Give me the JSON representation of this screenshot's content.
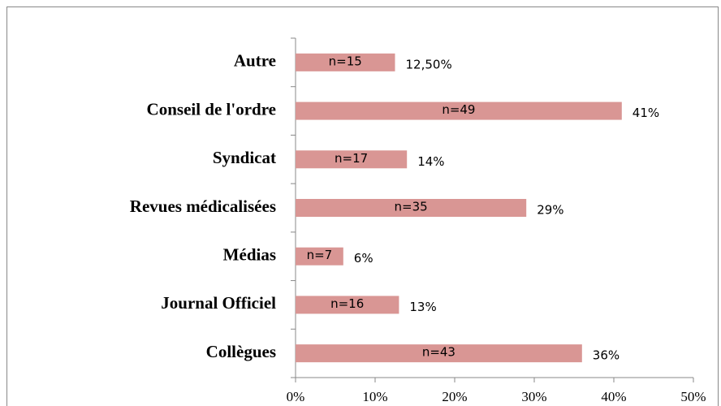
{
  "chart_data": {
    "type": "hbar",
    "categories": [
      "Autre",
      "Conseil de l'ordre",
      "Syndicat",
      "Revues médicalisées",
      "Médias",
      "Journal Officiel",
      "Collègues"
    ],
    "values": [
      12.5,
      41,
      14,
      29,
      6,
      13,
      36
    ],
    "value_labels": [
      "12,50%",
      "41%",
      "14%",
      "29%",
      "6%",
      "13%",
      "36%"
    ],
    "bar_labels": [
      "n=15",
      "n=49",
      "n=17",
      "n=35",
      "n=7",
      "n=16",
      "n=43"
    ],
    "color": "#d99694",
    "xlim": [
      0,
      50
    ],
    "xticks": [
      {
        "value": 0,
        "label": "0%"
      },
      {
        "value": 10,
        "label": "10%"
      },
      {
        "value": 20,
        "label": "20%"
      },
      {
        "value": 30,
        "label": "30%"
      },
      {
        "value": 40,
        "label": "40%"
      },
      {
        "value": 50,
        "label": "50%"
      }
    ]
  }
}
